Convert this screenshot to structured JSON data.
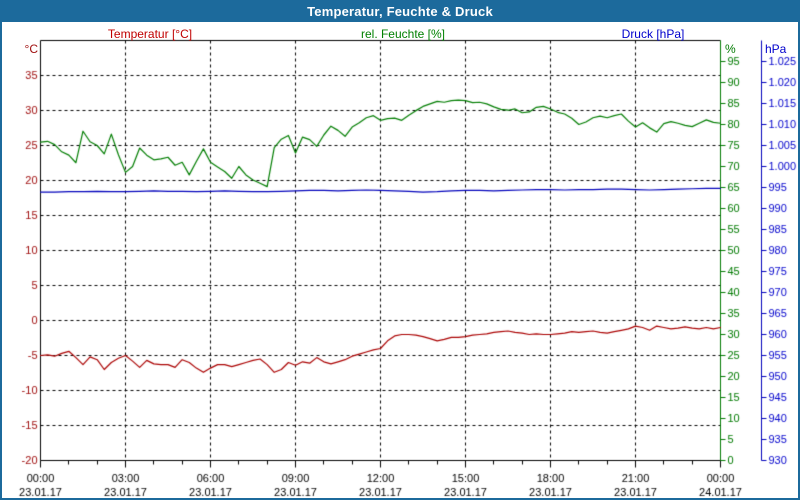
{
  "window": {
    "title": "Temperatur, Feuchte & Druck"
  },
  "colors": {
    "frame": "#1c6a9c",
    "title_text": "#ffffff",
    "grid": "#000000",
    "x_labels": "#000000",
    "temperature": {
      "header": "#c00000",
      "ticks": "#a01010",
      "line": "#aa0000"
    },
    "humidity": {
      "header": "#008000",
      "ticks": "#007a00",
      "line": "#007d00"
    },
    "pressure": {
      "header": "#0000cc",
      "ticks": "#0000cc",
      "line": "#0000bb"
    }
  },
  "chart_data": {
    "type": "line",
    "title": "Temperatur, Feuchte & Druck",
    "grid": "dashed, horizontal lines follow temperature ticks, vertical lines every 3 h",
    "legend_position": "axis titles above plot",
    "x_axis": {
      "start_hour": 0,
      "end_hour": 24,
      "major_step_h": 3,
      "minor_step_h": 1,
      "major_labels": [
        {
          "time": "00:00",
          "date": "23.01.17"
        },
        {
          "time": "03:00",
          "date": "23.01.17"
        },
        {
          "time": "06:00",
          "date": "23.01.17"
        },
        {
          "time": "09:00",
          "date": "23.01.17"
        },
        {
          "time": "12:00",
          "date": "23.01.17"
        },
        {
          "time": "15:00",
          "date": "23.01.17"
        },
        {
          "time": "18:00",
          "date": "23.01.17"
        },
        {
          "time": "21:00",
          "date": "23.01.17"
        },
        {
          "time": "00:00",
          "date": "24.01.17"
        }
      ]
    },
    "axes": {
      "temperature": {
        "label": "Temperatur [°C]",
        "unit": "°C",
        "side": "left",
        "min": -20,
        "max": 40,
        "tick_values": [
          35,
          30,
          25,
          20,
          15,
          10,
          5,
          0,
          -5,
          -10,
          -15,
          -20
        ],
        "tick_labels": [
          "35",
          "30",
          "25",
          "20",
          "15",
          "10",
          "5",
          "0",
          "-5",
          "-10",
          "-15",
          "-20"
        ],
        "color": "#a01010",
        "axis_line_color": "#000000"
      },
      "humidity": {
        "label": "rel. Feuchte [%]",
        "unit": "%",
        "side": "right-inner",
        "min": 0,
        "max": 100,
        "tick_values": [
          95,
          90,
          85,
          80,
          75,
          70,
          65,
          60,
          55,
          50,
          45,
          40,
          35,
          30,
          25,
          20,
          15,
          10,
          5,
          0
        ],
        "tick_labels": [
          "95",
          "90",
          "85",
          "80",
          "75",
          "70",
          "65",
          "60",
          "55",
          "50",
          "45",
          "40",
          "35",
          "30",
          "25",
          "20",
          "15",
          "10",
          "5",
          "0"
        ],
        "color": "#007a00",
        "axis_line_color": "#007a00"
      },
      "pressure": {
        "label": "Druck [hPa]",
        "unit": "hPa",
        "side": "right-outer",
        "min": 930,
        "max": 1030,
        "tick_values": [
          1025,
          1020,
          1015,
          1010,
          1005,
          1000,
          995,
          990,
          985,
          980,
          975,
          970,
          965,
          960,
          955,
          950,
          945,
          940,
          935,
          930
        ],
        "tick_labels": [
          "1.025",
          "1.020",
          "1.015",
          "1.010",
          "1.005",
          "1.000",
          "995",
          "990",
          "985",
          "980",
          "975",
          "970",
          "965",
          "960",
          "955",
          "950",
          "945",
          "940",
          "935",
          "930"
        ],
        "color": "#0000cc",
        "axis_line_color": "#0000bb"
      }
    },
    "series": [
      {
        "name": "Temperatur",
        "axis": "temperature",
        "color": "#aa0000",
        "x_step_h": 0.25,
        "values": [
          -5.0,
          -4.9,
          -5.1,
          -4.7,
          -4.4,
          -5.3,
          -6.3,
          -5.2,
          -5.6,
          -7.0,
          -6.0,
          -5.4,
          -5.0,
          -5.8,
          -6.7,
          -5.7,
          -6.2,
          -6.3,
          -6.3,
          -6.7,
          -5.6,
          -6.0,
          -6.8,
          -7.4,
          -6.8,
          -6.3,
          -6.3,
          -6.6,
          -6.3,
          -6.0,
          -5.7,
          -5.5,
          -6.3,
          -7.4,
          -7.0,
          -6.0,
          -6.4,
          -5.9,
          -6.1,
          -5.3,
          -5.9,
          -6.2,
          -5.9,
          -5.6,
          -5.1,
          -4.8,
          -4.5,
          -4.2,
          -4.0,
          -2.9,
          -2.2,
          -2.0,
          -2.0,
          -2.1,
          -2.3,
          -2.6,
          -2.9,
          -2.7,
          -2.4,
          -2.4,
          -2.3,
          -2.1,
          -2.0,
          -1.9,
          -1.7,
          -1.6,
          -1.5,
          -1.7,
          -1.8,
          -2.0,
          -1.9,
          -2.0,
          -2.0,
          -1.9,
          -1.8,
          -1.6,
          -1.7,
          -1.6,
          -1.5,
          -1.7,
          -1.8,
          -1.6,
          -1.4,
          -1.2,
          -0.8,
          -1.0,
          -1.4,
          -0.8,
          -1.0,
          -1.2,
          -1.1,
          -0.9,
          -1.1,
          -1.2,
          -1.0,
          -1.2,
          -1.0
        ]
      },
      {
        "name": "rel. Feuchte",
        "axis": "humidity",
        "color": "#007d00",
        "x_step_h": 0.25,
        "values": [
          75.8,
          76.0,
          75.2,
          73.5,
          72.7,
          70.9,
          78.4,
          75.9,
          75.0,
          73.0,
          77.7,
          72.8,
          68.6,
          70.0,
          74.4,
          72.7,
          71.6,
          71.8,
          72.2,
          70.3,
          71.0,
          68.0,
          71.2,
          74.2,
          71.0,
          69.9,
          68.8,
          67.2,
          70.0,
          68.0,
          66.8,
          66.0,
          65.2,
          74.5,
          76.5,
          77.4,
          73.2,
          77.0,
          76.4,
          74.8,
          77.5,
          79.6,
          78.6,
          77.2,
          79.4,
          80.4,
          81.6,
          82.1,
          81.0,
          81.4,
          81.5,
          81.0,
          82.2,
          83.3,
          84.3,
          84.9,
          85.5,
          85.3,
          85.7,
          85.8,
          85.7,
          85.2,
          85.3,
          84.9,
          84.2,
          83.6,
          83.4,
          83.7,
          82.8,
          83.0,
          84.1,
          84.3,
          83.7,
          82.9,
          82.5,
          81.5,
          80.0,
          80.6,
          81.6,
          82.0,
          81.6,
          82.1,
          82.5,
          80.8,
          79.4,
          80.4,
          79.2,
          78.2,
          80.2,
          80.7,
          80.3,
          79.8,
          79.5,
          80.3,
          81.1,
          80.5,
          80.3
        ]
      },
      {
        "name": "Druck",
        "axis": "pressure",
        "color": "#0000bb",
        "x_step_h": 0.5,
        "values": [
          993.9,
          993.9,
          994.0,
          994.0,
          994.1,
          994.0,
          994.0,
          994.1,
          994.2,
          994.1,
          994.1,
          994.0,
          994.1,
          994.2,
          994.1,
          994.0,
          994.0,
          994.1,
          994.2,
          994.3,
          994.3,
          994.2,
          994.3,
          994.4,
          994.3,
          994.2,
          994.1,
          993.9,
          994.0,
          994.2,
          994.3,
          994.3,
          994.2,
          994.3,
          994.4,
          994.5,
          994.5,
          994.4,
          994.5,
          994.5,
          994.6,
          994.6,
          994.5,
          994.4,
          994.5,
          994.6,
          994.7,
          994.8,
          994.8
        ]
      }
    ]
  }
}
